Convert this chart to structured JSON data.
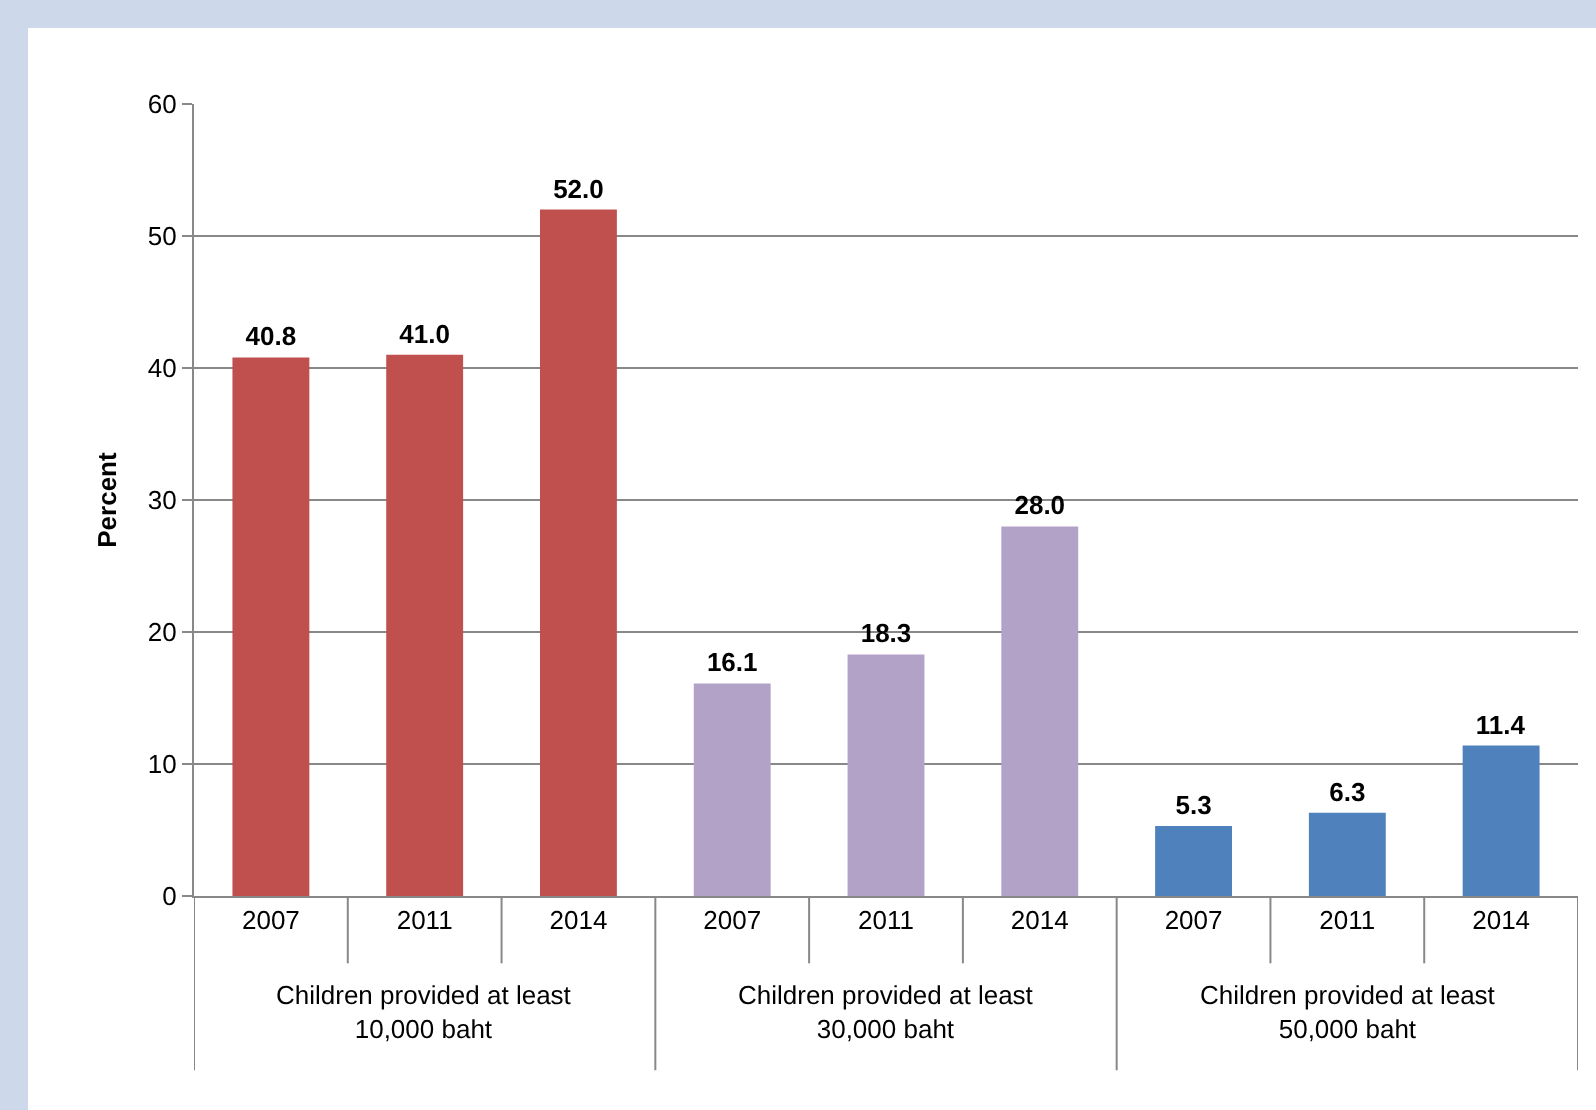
{
  "chart_data": {
    "type": "bar",
    "ylabel": "Percent",
    "categories": [
      "2007",
      "2011",
      "2014",
      "2007",
      "2011",
      "2014",
      "2007",
      "2011",
      "2014"
    ],
    "values": [
      40.8,
      41.0,
      52.0,
      16.1,
      18.3,
      28.0,
      5.3,
      6.3,
      11.4
    ],
    "value_labels": [
      "40.8",
      "41.0",
      "52.0",
      "16.1",
      "18.3",
      "28.0",
      "5.3",
      "6.3",
      "11.4"
    ],
    "colors": [
      "#c0504d",
      "#c0504d",
      "#c0504d",
      "#b3a2c7",
      "#b3a2c7",
      "#b3a2c7",
      "#4f81bd",
      "#4f81bd",
      "#4f81bd"
    ],
    "ylim": [
      0,
      60
    ],
    "yticks": [
      0,
      10,
      20,
      30,
      40,
      50,
      60
    ],
    "grid": "y",
    "annotations": [
      "Children provided at least 10,000 baht",
      "Children provided at least 30,000 baht",
      "Children provided at least 50,000 baht"
    ]
  }
}
